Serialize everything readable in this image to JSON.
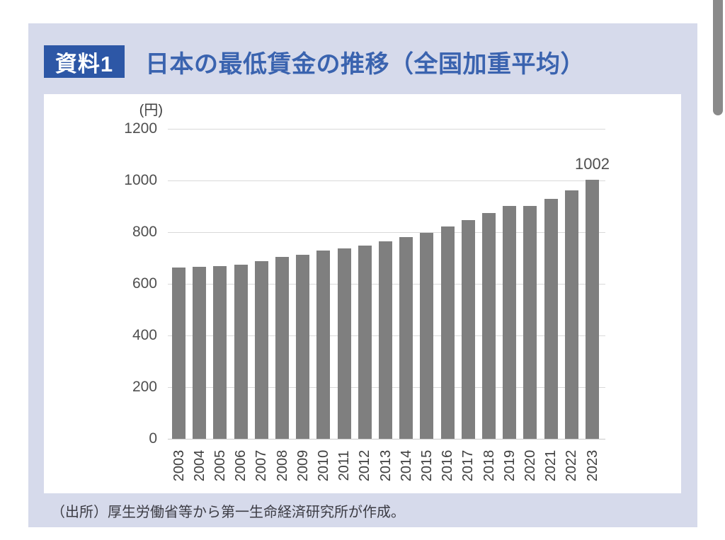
{
  "header": {
    "badge": "資料1",
    "title": "日本の最低賃金の推移（全国加重平均）"
  },
  "footer": {
    "source": "（出所）厚生労働省等から第一生命経済研究所が作成。"
  },
  "colors": {
    "panel_bg": "#d6daeb",
    "badge_bg": "#2d57a6",
    "badge_text": "#ffffff",
    "title_text": "#3a63af",
    "bar": "#7f7f7f",
    "gridline": "#d9d9d9",
    "axis_text": "#4f4f4f",
    "source_text": "#3c3c44",
    "scrollbar": "#8a8a8a"
  },
  "chart_data": {
    "type": "bar",
    "title": "日本の最低賃金の推移（全国加重平均）",
    "unit_label": "(円)",
    "categories": [
      "2003",
      "2004",
      "2005",
      "2006",
      "2007",
      "2008",
      "2009",
      "2010",
      "2011",
      "2012",
      "2013",
      "2014",
      "2015",
      "2016",
      "2017",
      "2018",
      "2019",
      "2020",
      "2021",
      "2022",
      "2023"
    ],
    "values": [
      664,
      665,
      668,
      673,
      687,
      703,
      713,
      730,
      737,
      749,
      764,
      780,
      798,
      823,
      848,
      874,
      901,
      902,
      930,
      961,
      1002
    ],
    "ylim": [
      0,
      1200
    ],
    "ytick_step": 200,
    "grid": true,
    "legend": "none",
    "bar_color": "#7f7f7f",
    "annotation": {
      "category": "2023",
      "text": "1002"
    }
  }
}
